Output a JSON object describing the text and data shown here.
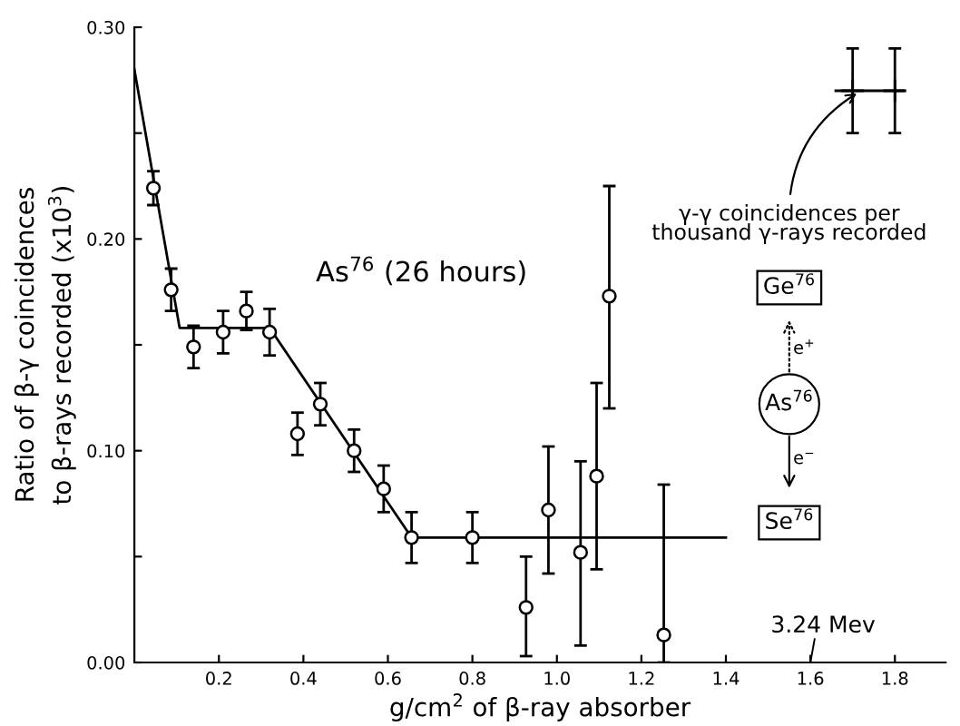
{
  "chart_data": {
    "type": "scatter",
    "xlabel": "g/cm$^{2}$ of β-ray absorber",
    "ylabel": "Ratio of β-γ coincidences\nto β-rays recorded (x10$^{3}$)",
    "xlim": [
      0,
      1.92
    ],
    "ylim": [
      0,
      0.3
    ],
    "xticks": [
      0.2,
      0.4,
      0.6,
      0.8,
      {
        "value": 1.0,
        "label": "1.0"
      },
      1.2,
      1.4,
      1.6,
      1.8
    ],
    "yticks": [
      {
        "value": 0.0,
        "label": "0.00"
      },
      {
        "value": 0.05,
        "label": null
      },
      {
        "value": 0.1,
        "label": "0.10"
      },
      {
        "value": 0.15,
        "label": null
      },
      {
        "value": 0.2,
        "label": "0.20"
      },
      {
        "value": 0.25,
        "label": null
      },
      {
        "value": 0.3,
        "label": "0.30"
      }
    ],
    "marker": "circle",
    "series": [
      {
        "color": "#000000",
        "x": [
          0.045,
          0.087,
          0.14,
          0.21,
          0.265,
          0.32,
          0.386,
          0.44,
          0.52,
          0.59,
          0.656,
          0.8,
          0.927,
          0.98,
          1.056,
          1.094,
          1.124,
          1.253
        ],
        "values": [
          0.224,
          0.176,
          0.149,
          0.156,
          0.166,
          0.156,
          0.108,
          0.122,
          0.1,
          0.082,
          0.059,
          0.059,
          0.026,
          0.072,
          0.052,
          0.088,
          0.173,
          0.013
        ],
        "errors": [
          0.008,
          0.01,
          0.01,
          0.01,
          0.009,
          0.011,
          0.01,
          0.01,
          0.01,
          0.011,
          0.012,
          0.012,
          [
            0.003,
            0.05
          ],
          0.03,
          [
            0.008,
            0.095
          ],
          [
            0.044,
            0.132
          ],
          [
            0.12,
            0.225
          ],
          [
            0.0,
            0.084
          ]
        ]
      },
      {
        "type": "line",
        "color": "#000000",
        "marker": "none",
        "x": [
          0,
          0.107,
          0.32,
          0.656,
          1.4
        ],
        "values": [
          0.28,
          0.158,
          0.158,
          0.059,
          0.059
        ]
      },
      {
        "type": "line",
        "color": "#000000",
        "marker": "none",
        "x": [
          1.66,
          1.82
        ],
        "values": [
          0.27,
          0.27
        ]
      },
      {
        "color": "#000000",
        "marker": "cross",
        "x": [
          1.7,
          1.8
        ],
        "values": [
          0.27,
          0.27
        ],
        "errors": [
          0.02,
          0.02
        ]
      }
    ],
    "annotations": [
      {
        "text": "γ-γ coincidences per\nthousand γ-rays recorded",
        "x": 1.72,
        "y": 0.27
      },
      "As$^{76}$ (26 hours)",
      "Ge$^{76}$",
      "e$^{+}$",
      "As$^{76}$",
      "e$^{−}$",
      "Se$^{76}$",
      "3.24 Mev"
    ]
  }
}
